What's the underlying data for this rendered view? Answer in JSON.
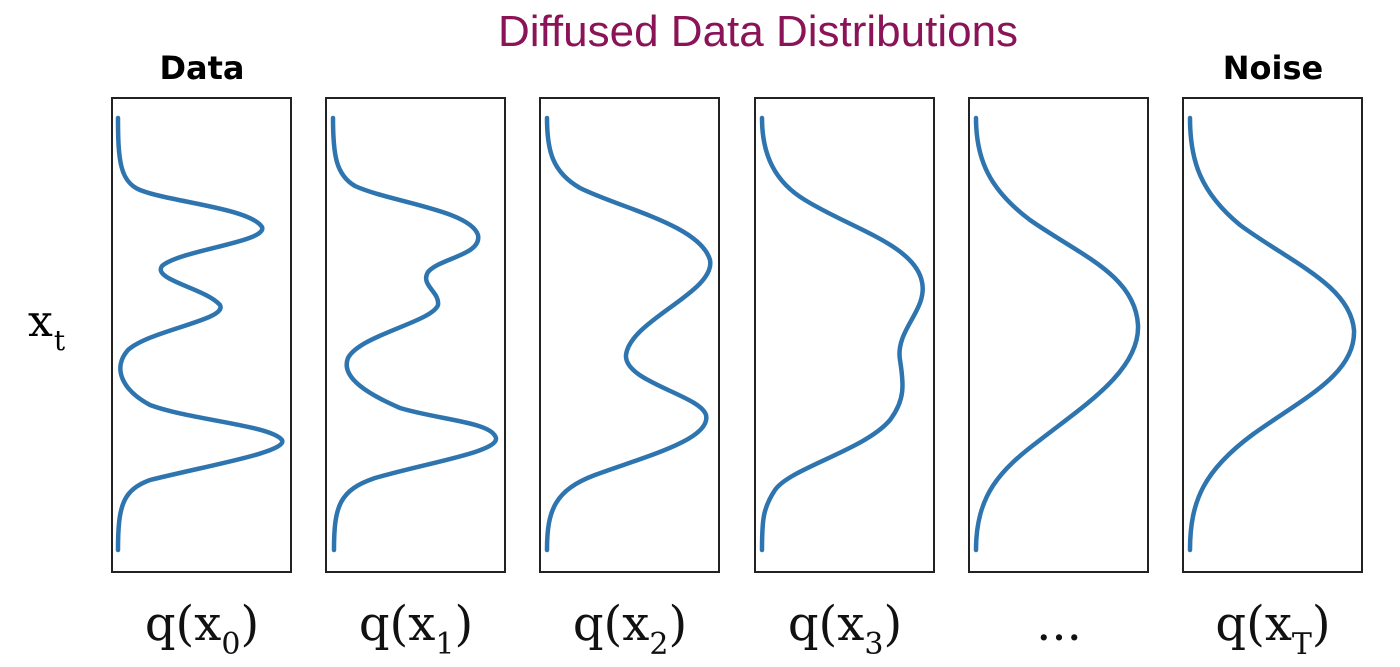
{
  "diagram": {
    "title": "Diffused Data Distributions",
    "title_color": "#8a1457",
    "left_label": "Data",
    "right_label": "Noise",
    "axis_label": "x",
    "axis_label_sub": "t",
    "curve_color": "#2e75b0",
    "panels": [
      {
        "caption": "q(x",
        "caption_sub": "0",
        "caption_end": ")"
      },
      {
        "caption": "q(x",
        "caption_sub": "1",
        "caption_end": ")"
      },
      {
        "caption": "q(x",
        "caption_sub": "2",
        "caption_end": ")"
      },
      {
        "caption": "q(x",
        "caption_sub": "3",
        "caption_end": ")"
      },
      {
        "caption": "...",
        "caption_sub": "",
        "caption_end": ""
      },
      {
        "caption": "q(x",
        "caption_sub": "T",
        "caption_end": ")"
      }
    ]
  }
}
